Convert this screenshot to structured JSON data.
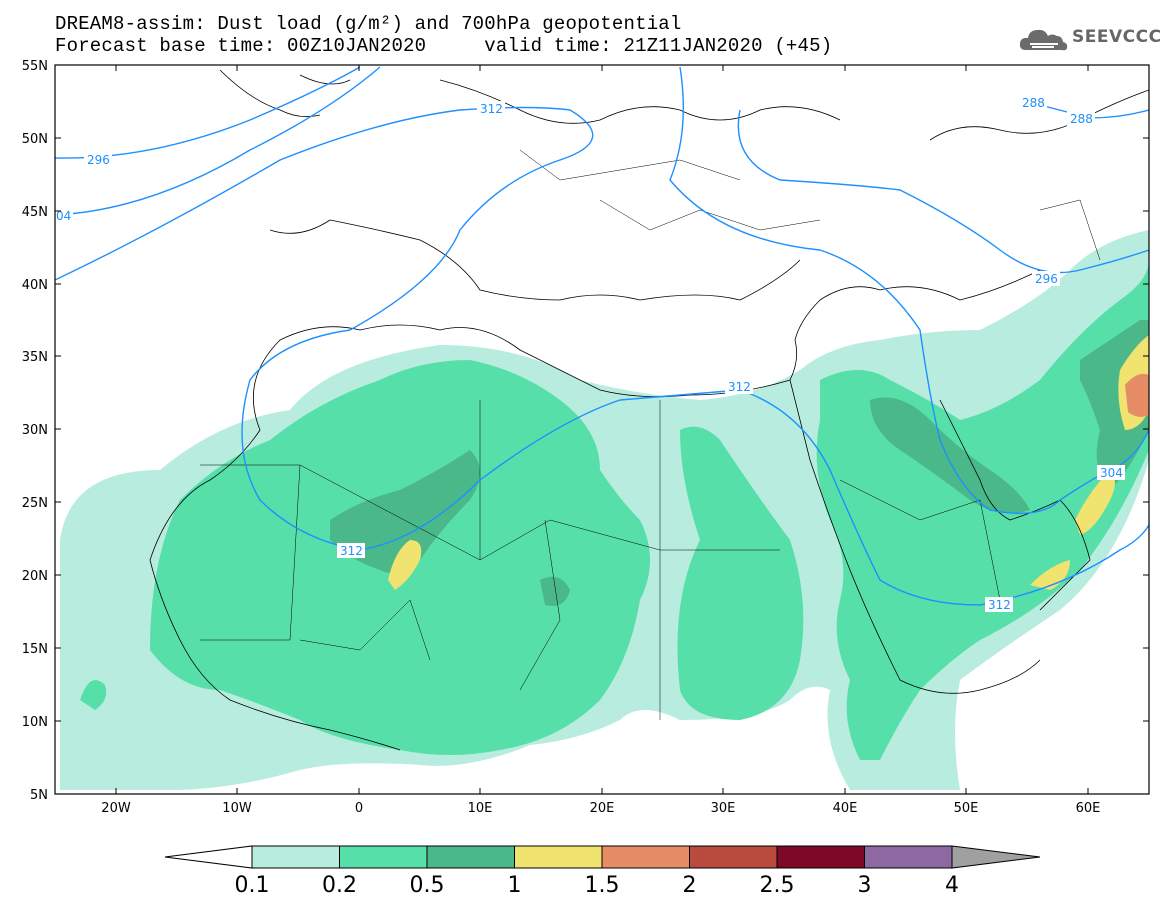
{
  "header": {
    "title_line1": "DREAM8-assim: Dust load (g/m²) and 700hPa geopotential",
    "title_line2": "Forecast base time: 00Z10JAN2020     valid time: 21Z11JAN2020 (+45)"
  },
  "logo": {
    "text": "SEEVCCC",
    "icon": "cloud-logo-icon"
  },
  "map": {
    "lon_range": [
      -25,
      65
    ],
    "lat_range": [
      5,
      55
    ],
    "lat_ticks": [
      "55N",
      "50N",
      "45N",
      "40N",
      "35N",
      "30N",
      "25N",
      "20N",
      "15N",
      "10N",
      "5N"
    ],
    "lon_ticks": [
      "20W",
      "10W",
      "0",
      "10E",
      "20E",
      "30E",
      "40E",
      "50E",
      "60E"
    ],
    "contour_color": "#1e90ff",
    "contour_labels": [
      "312",
      "296",
      "04",
      "312",
      "288",
      "288",
      "296",
      "304",
      "312",
      "312"
    ]
  },
  "colorbar": {
    "labels": [
      "0.1",
      "0.2",
      "0.5",
      "1",
      "1.5",
      "2",
      "2.5",
      "3",
      "4"
    ],
    "colors": [
      "#ffffff",
      "#b7ecdf",
      "#57dfaa",
      "#4bb88a",
      "#f1e36f",
      "#e78d66",
      "#b84a3e",
      "#7c0a26",
      "#8e68a0",
      "#a0a0a0"
    ]
  }
}
